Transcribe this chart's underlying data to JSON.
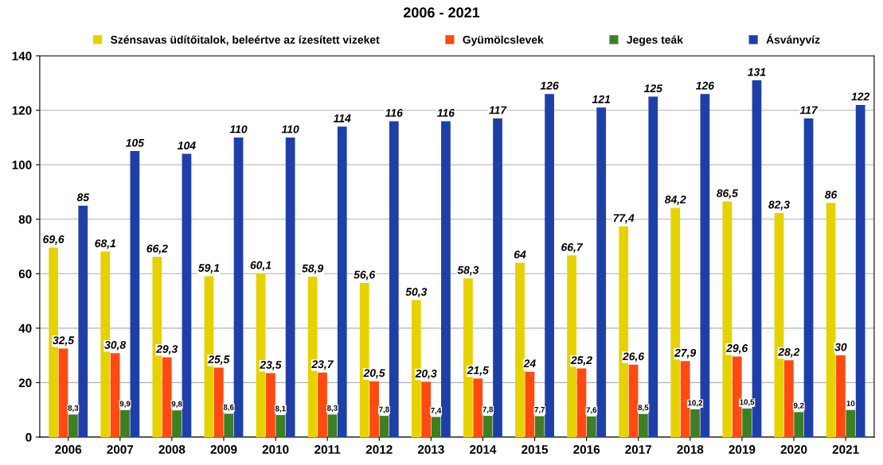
{
  "chart_data": {
    "type": "bar",
    "title": "2006 - 2021",
    "categories": [
      "2006",
      "2007",
      "2008",
      "2009",
      "2010",
      "2011",
      "2012",
      "2013",
      "2014",
      "2015",
      "2016",
      "2017",
      "2018",
      "2019",
      "2020",
      "2021"
    ],
    "series": [
      {
        "name": "Szénsavas üdítőitalok, beleértve az ízesített vizeket",
        "color": "#e6d200",
        "values": [
          69.6,
          68.1,
          66.2,
          59.1,
          60.1,
          58.9,
          56.6,
          50.3,
          58.3,
          64,
          66.7,
          77.4,
          84.2,
          86.5,
          82.3,
          86
        ],
        "value_labels": [
          "69,6",
          "68,1",
          "66,2",
          "59,1",
          "60,1",
          "58,9",
          "56,6",
          "50,3",
          "58,3",
          "64",
          "66,7",
          "77,4",
          "84,2",
          "86,5",
          "82,3",
          "86"
        ]
      },
      {
        "name": "Gyümölcslevek",
        "color": "#ff4a12",
        "values": [
          32.5,
          30.8,
          29.3,
          25.5,
          23.5,
          23.7,
          20.5,
          20.3,
          21.5,
          24,
          25.2,
          26.6,
          27.9,
          29.6,
          28.2,
          30
        ],
        "value_labels": [
          "32,5",
          "30,8",
          "29,3",
          "25,5",
          "23,5",
          "23,7",
          "20,5",
          "20,3",
          "21,5",
          "24",
          "25,2",
          "26,6",
          "27,9",
          "29,6",
          "28,2",
          "30"
        ]
      },
      {
        "name": "Jeges teák",
        "color": "#3f7f23",
        "values": [
          8.3,
          9.9,
          9.8,
          8.6,
          8.1,
          8.3,
          7.8,
          7.4,
          7.8,
          7.7,
          7.6,
          8.5,
          10.2,
          10.5,
          9.2,
          10
        ],
        "value_labels": [
          "8,3",
          "9,9",
          "9,8",
          "8,6",
          "8,1",
          "8,3",
          "7,8",
          "7,4",
          "7,8",
          "7,7",
          "7,6",
          "8,5",
          "10,2",
          "10,5",
          "9,2",
          "10"
        ]
      },
      {
        "name": "Ásványvíz",
        "color": "#1f3fa8",
        "values": [
          85,
          105,
          104,
          110,
          110,
          114,
          116,
          116,
          117,
          126,
          121,
          125,
          126,
          131,
          117,
          122
        ],
        "value_labels": [
          "85",
          "105",
          "104",
          "110",
          "110",
          "114",
          "116",
          "116",
          "117",
          "126",
          "121",
          "125",
          "126",
          "131",
          "117",
          "122"
        ]
      }
    ],
    "ylim": [
      0,
      140
    ],
    "yticks": [
      0,
      20,
      40,
      60,
      80,
      100,
      120,
      140
    ],
    "grid": "y",
    "legend": "top"
  }
}
